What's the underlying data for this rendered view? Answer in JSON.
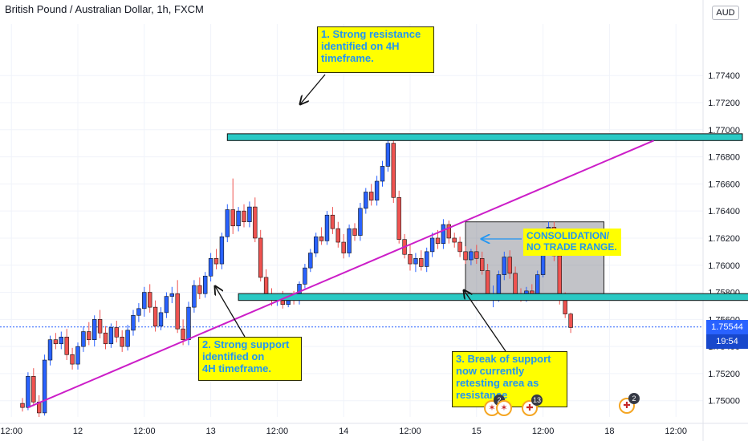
{
  "header": {
    "title": "British Pound / Australian Dollar, 1h, FXCM",
    "currency": "AUD"
  },
  "price_tags": {
    "last_price": "1.75544",
    "countdown": "19:54"
  },
  "annotations": {
    "resistance": "1. Strong resistance\nidentified on 4H\ntimeframe.",
    "support": "2. Strong support\nidentified on\n4H timeframe.",
    "consolidation": "CONSOLIDATION/\nNO TRADE RANGE.",
    "break": "3. Break of support\nnow currently\nretesting area as\nresistance"
  },
  "events": [
    {
      "icon": "australia-flag-icon",
      "count": "2"
    },
    {
      "icon": "australia-flag-icon",
      "count": ""
    },
    {
      "icon": "uk-flag-icon",
      "count": "13"
    },
    {
      "icon": "uk-flag-icon",
      "count": "2"
    }
  ],
  "colors": {
    "up": "#2962ff",
    "down": "#ef5350",
    "zone": "#2ac9c4",
    "trendline": "#cc1ec8",
    "price_tag": "#2962ff",
    "countdown_tag": "#1848cc",
    "note_bg": "#ffff00",
    "note_text": "#2196f3"
  },
  "chart_data": {
    "type": "candlestick",
    "title": "British Pound / Australian Dollar, 1h, FXCM",
    "x_ticks": [
      "12:00",
      "12",
      "12:00",
      "13",
      "12:00",
      "14",
      "12:00",
      "15",
      "12:00",
      "18",
      "12:00"
    ],
    "y_ticks": [
      "1.77400",
      "1.77200",
      "1.77000",
      "1.76800",
      "1.76600",
      "1.76400",
      "1.76200",
      "1.76000",
      "1.75800",
      "1.75600",
      "1.75400",
      "1.75200",
      "1.75000"
    ],
    "ylim": [
      1.7488,
      1.7778
    ],
    "bars_per_day": 24,
    "candles": [
      [
        1.7498,
        1.7502,
        1.7492,
        1.7495
      ],
      [
        1.7495,
        1.7521,
        1.7493,
        1.7518
      ],
      [
        1.7518,
        1.7524,
        1.7496,
        1.7499
      ],
      [
        1.7499,
        1.7504,
        1.7488,
        1.7491
      ],
      [
        1.7491,
        1.7534,
        1.7489,
        1.753
      ],
      [
        1.753,
        1.7548,
        1.7526,
        1.7545
      ],
      [
        1.7545,
        1.755,
        1.7538,
        1.7542
      ],
      [
        1.7542,
        1.7551,
        1.7538,
        1.7547
      ],
      [
        1.7547,
        1.7553,
        1.753,
        1.7534
      ],
      [
        1.7534,
        1.7539,
        1.7523,
        1.7527
      ],
      [
        1.7527,
        1.7543,
        1.7523,
        1.754
      ],
      [
        1.754,
        1.7555,
        1.7536,
        1.7551
      ],
      [
        1.7551,
        1.7558,
        1.7541,
        1.7545
      ],
      [
        1.7545,
        1.7563,
        1.754,
        1.756
      ],
      [
        1.756,
        1.7567,
        1.7546,
        1.755
      ],
      [
        1.755,
        1.7555,
        1.7538,
        1.7542
      ],
      [
        1.7542,
        1.7557,
        1.7539,
        1.7554
      ],
      [
        1.7554,
        1.7559,
        1.7543,
        1.7547
      ],
      [
        1.7547,
        1.7552,
        1.7536,
        1.754
      ],
      [
        1.754,
        1.7556,
        1.7537,
        1.7552
      ],
      [
        1.7552,
        1.7567,
        1.7548,
        1.7563
      ],
      [
        1.7563,
        1.7572,
        1.7558,
        1.7568
      ],
      [
        1.7568,
        1.7584,
        1.7562,
        1.758
      ],
      [
        1.758,
        1.7586,
        1.7565,
        1.7569
      ],
      [
        1.7569,
        1.7574,
        1.7551,
        1.7555
      ],
      [
        1.7555,
        1.7569,
        1.7552,
        1.7565
      ],
      [
        1.7565,
        1.758,
        1.7561,
        1.7577
      ],
      [
        1.7577,
        1.7584,
        1.7572,
        1.7579
      ],
      [
        1.7579,
        1.7589,
        1.755,
        1.7553
      ],
      [
        1.7553,
        1.756,
        1.7541,
        1.7545
      ],
      [
        1.7545,
        1.7573,
        1.7541,
        1.7569
      ],
      [
        1.7569,
        1.7589,
        1.7565,
        1.7585
      ],
      [
        1.7585,
        1.7591,
        1.7575,
        1.7579
      ],
      [
        1.7579,
        1.7595,
        1.7576,
        1.7592
      ],
      [
        1.7592,
        1.7609,
        1.7588,
        1.7605
      ],
      [
        1.7605,
        1.7612,
        1.7597,
        1.7601
      ],
      [
        1.7601,
        1.7624,
        1.7597,
        1.7621
      ],
      [
        1.7621,
        1.7645,
        1.7617,
        1.7641
      ],
      [
        1.7641,
        1.7664,
        1.7623,
        1.7629
      ],
      [
        1.7629,
        1.7643,
        1.7625,
        1.764
      ],
      [
        1.764,
        1.7645,
        1.7628,
        1.7632
      ],
      [
        1.7632,
        1.7647,
        1.7628,
        1.7643
      ],
      [
        1.7643,
        1.765,
        1.7617,
        1.762
      ],
      [
        1.762,
        1.7626,
        1.7588,
        1.7591
      ],
      [
        1.7591,
        1.7597,
        1.7574,
        1.7578
      ],
      [
        1.7578,
        1.7583,
        1.757,
        1.7574
      ],
      [
        1.7574,
        1.7579,
        1.757,
        1.7575
      ],
      [
        1.7575,
        1.7581,
        1.7568,
        1.7571
      ],
      [
        1.7571,
        1.7579,
        1.7569,
        1.7576
      ],
      [
        1.7576,
        1.7581,
        1.7571,
        1.7574
      ],
      [
        1.7574,
        1.7588,
        1.7571,
        1.7586
      ],
      [
        1.7586,
        1.7601,
        1.7583,
        1.7598
      ],
      [
        1.7598,
        1.7612,
        1.7595,
        1.7609
      ],
      [
        1.7609,
        1.7624,
        1.7606,
        1.7621
      ],
      [
        1.7621,
        1.7628,
        1.7615,
        1.7618
      ],
      [
        1.7618,
        1.764,
        1.7615,
        1.7637
      ],
      [
        1.7637,
        1.7643,
        1.7623,
        1.7627
      ],
      [
        1.7627,
        1.7632,
        1.7613,
        1.7617
      ],
      [
        1.7617,
        1.7623,
        1.7605,
        1.7609
      ],
      [
        1.7609,
        1.763,
        1.7606,
        1.7627
      ],
      [
        1.7627,
        1.7631,
        1.7618,
        1.7622
      ],
      [
        1.7622,
        1.7646,
        1.7618,
        1.7642
      ],
      [
        1.7642,
        1.7657,
        1.7638,
        1.7654
      ],
      [
        1.7654,
        1.766,
        1.7644,
        1.7648
      ],
      [
        1.7648,
        1.7666,
        1.7644,
        1.7662
      ],
      [
        1.7662,
        1.7677,
        1.7658,
        1.7673
      ],
      [
        1.7673,
        1.7694,
        1.7669,
        1.769
      ],
      [
        1.769,
        1.7694,
        1.7646,
        1.765
      ],
      [
        1.765,
        1.7655,
        1.7616,
        1.7619
      ],
      [
        1.7619,
        1.7623,
        1.7605,
        1.7608
      ],
      [
        1.7608,
        1.7615,
        1.7596,
        1.7601
      ],
      [
        1.7601,
        1.7609,
        1.7595,
        1.7605
      ],
      [
        1.7605,
        1.7611,
        1.7596,
        1.7599
      ],
      [
        1.7599,
        1.7613,
        1.7595,
        1.761
      ],
      [
        1.761,
        1.7624,
        1.7606,
        1.762
      ],
      [
        1.762,
        1.7626,
        1.7612,
        1.7616
      ],
      [
        1.7616,
        1.7634,
        1.7612,
        1.763
      ],
      [
        1.763,
        1.7633,
        1.7616,
        1.762
      ],
      [
        1.762,
        1.7624,
        1.7613,
        1.7617
      ],
      [
        1.7617,
        1.7621,
        1.7606,
        1.761
      ],
      [
        1.761,
        1.7614,
        1.7601,
        1.7604
      ],
      [
        1.7604,
        1.7612,
        1.76,
        1.761
      ],
      [
        1.761,
        1.7615,
        1.7601,
        1.7605
      ],
      [
        1.7605,
        1.761,
        1.7593,
        1.7596
      ],
      [
        1.7596,
        1.7601,
        1.7576,
        1.7579
      ],
      [
        1.7579,
        1.7585,
        1.7569,
        1.7579
      ],
      [
        1.7579,
        1.7596,
        1.7573,
        1.7593
      ],
      [
        1.7593,
        1.761,
        1.7589,
        1.7606
      ],
      [
        1.7606,
        1.7611,
        1.759,
        1.7594
      ],
      [
        1.7594,
        1.7599,
        1.7575,
        1.7578
      ],
      [
        1.7578,
        1.7583,
        1.7573,
        1.7576
      ],
      [
        1.7576,
        1.7584,
        1.7573,
        1.7581
      ],
      [
        1.7581,
        1.7586,
        1.7574,
        1.7577
      ],
      [
        1.7577,
        1.7596,
        1.7574,
        1.7593
      ],
      [
        1.7593,
        1.7614,
        1.7591,
        1.7611
      ],
      [
        1.7611,
        1.7632,
        1.7607,
        1.7628
      ],
      [
        1.7628,
        1.7632,
        1.7603,
        1.7607
      ],
      [
        1.7607,
        1.7612,
        1.7571,
        1.7575
      ],
      [
        1.7575,
        1.758,
        1.7561,
        1.7564
      ],
      [
        1.7564,
        1.7565,
        1.755,
        1.7554
      ]
    ],
    "horizontal_zones": [
      {
        "name": "resistance",
        "low": 1.7692,
        "high": 1.7697,
        "from_bar": 37,
        "to_bar": 130
      },
      {
        "name": "support",
        "low": 1.7574,
        "high": 1.7579,
        "from_bar": 39,
        "to_bar": 133
      }
    ],
    "rectangle": {
      "name": "consolidation",
      "low": 1.7576,
      "high": 1.7632,
      "from_bar": 80,
      "to_bar": 105
    },
    "trendline": {
      "from": [
        1,
        1.7495
      ],
      "to": [
        114,
        1.7692
      ]
    },
    "last_price": 1.75544
  }
}
